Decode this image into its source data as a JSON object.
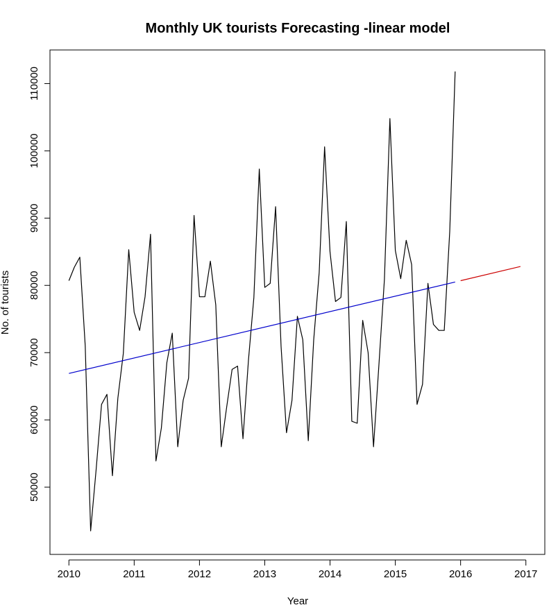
{
  "chart_data": {
    "type": "line",
    "title": "Monthly UK tourists Forecasting -linear model",
    "xlabel": "Year",
    "ylabel": "No. of tourists",
    "xlim": [
      2009.71,
      2017.29
    ],
    "ylim": [
      40000,
      115000
    ],
    "xticks": [
      2010,
      2011,
      2012,
      2013,
      2014,
      2015,
      2016,
      2017
    ],
    "yticks": [
      50000,
      60000,
      70000,
      80000,
      90000,
      100000,
      110000
    ],
    "grid": false,
    "series": [
      {
        "name": "Observed",
        "color": "#000000",
        "start": 2010,
        "step": 0.0833333,
        "values": [
          80700,
          82700,
          84200,
          71000,
          43500,
          52600,
          62300,
          63800,
          51700,
          63200,
          69900,
          85300,
          76000,
          73300,
          78300,
          87600,
          53900,
          58800,
          68500,
          72900,
          56000,
          62900,
          66200,
          90400,
          78300,
          78300,
          83600,
          77100,
          56000,
          61900,
          67500,
          68000,
          57200,
          68900,
          78200,
          97300,
          79700,
          80300,
          91700,
          70900,
          58100,
          62900,
          75400,
          71900,
          56900,
          71900,
          81900,
          100600,
          85000,
          77600,
          78200,
          89500,
          59800,
          59500,
          74800,
          70000,
          56000,
          68400,
          80900,
          104800,
          85200,
          81000,
          86700,
          83100,
          62300,
          65300,
          80300,
          74200,
          73300,
          73300,
          88000,
          111800
        ]
      },
      {
        "name": "Fitted",
        "color": "#0000cc",
        "start": 2010,
        "end": 2015.9167,
        "value_start": 66900,
        "value_end": 80500
      },
      {
        "name": "Forecast",
        "color": "#cc0000",
        "start": 2016,
        "end": 2016.9167,
        "value_start": 80700,
        "value_end": 82800
      }
    ]
  }
}
